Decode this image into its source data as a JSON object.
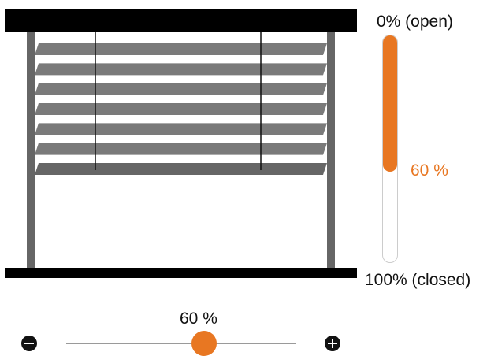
{
  "blind": {
    "level_percent": 60,
    "slat_count": 7
  },
  "level_indicator": {
    "top_label": "0% (open)",
    "bottom_label": "100% (closed)",
    "value_label": "60 %"
  },
  "slider": {
    "value_label": "60 %",
    "value_percent": 60
  },
  "colors": {
    "accent": "#e87722",
    "slat": "#7a7a7a",
    "frame": "#666666",
    "rail": "#000000"
  }
}
